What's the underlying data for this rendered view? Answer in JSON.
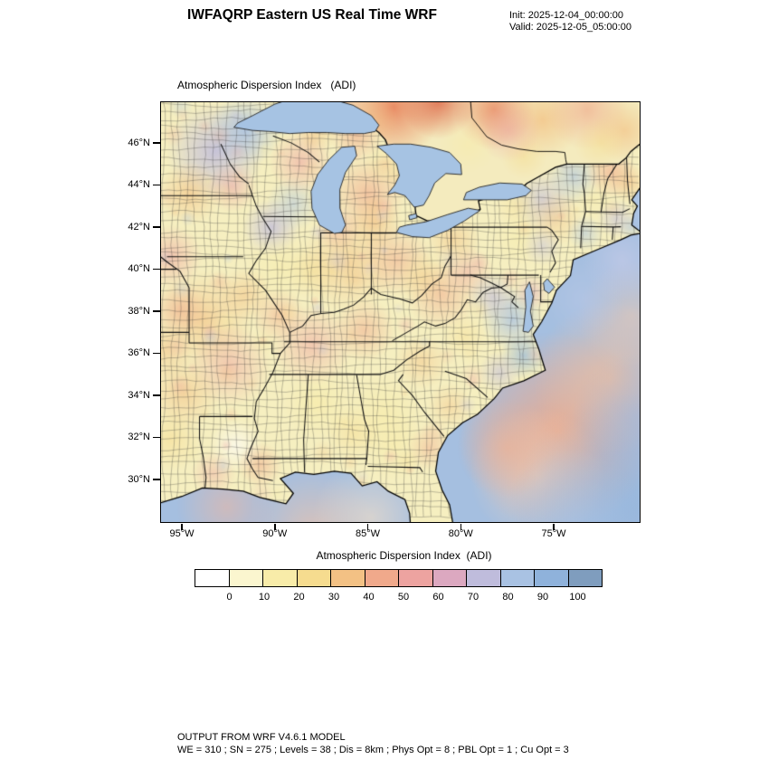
{
  "header": {
    "title": "IWFAQRP Eastern US Real Time WRF",
    "init_label": "Init: 2025-12-04_00:00:00",
    "valid_label": "Valid: 2025-12-05_05:00:00"
  },
  "map": {
    "field_label": "Atmospheric Dispersion Index   (ADI)",
    "lat_tick_labels": [
      "46°N",
      "44°N",
      "42°N",
      "40°N",
      "38°N",
      "36°N",
      "34°N",
      "32°N",
      "30°N"
    ],
    "lon_tick_labels": [
      "95°W",
      "90°W",
      "85°W",
      "80°W",
      "75°W"
    ]
  },
  "colorbar": {
    "title": "Atmospheric Dispersion Index  (ADI)",
    "tick_labels": [
      "0",
      "10",
      "20",
      "30",
      "40",
      "50",
      "60",
      "70",
      "80",
      "90",
      "100"
    ],
    "colors": [
      "#FFFFFF",
      "#FBF6CF",
      "#F8ECA9",
      "#F6DC8F",
      "#F3C184",
      "#F0A98B",
      "#EDA3A0",
      "#DCA8C0",
      "#BFBCDC",
      "#A9C2E3",
      "#8FB2DB",
      "#7F9DBE"
    ]
  },
  "footer": {
    "line1": "OUTPUT FROM WRF V4.6.1 MODEL",
    "line2": "WE = 310 ; SN = 275 ; Levels = 38 ; Dis = 8km ; Phys Opt = 8 ; PBL Opt = 1 ; Cu Opt = 3"
  },
  "chart_data": {
    "type": "heatmap",
    "title": "Atmospheric Dispersion Index (ADI)",
    "projection": "Eastern US lat/lon map with county boundaries",
    "x_ticks": [
      "95°W",
      "90°W",
      "85°W",
      "80°W",
      "75°W"
    ],
    "y_ticks": [
      "46°N",
      "44°N",
      "42°N",
      "40°N",
      "38°N",
      "36°N",
      "34°N",
      "32°N",
      "30°N"
    ],
    "colorbar_levels": [
      0,
      10,
      20,
      30,
      40,
      50,
      60,
      70,
      80,
      90,
      100
    ],
    "colorbar_colors": [
      "#FFFFFF",
      "#FBF6CF",
      "#F8ECA9",
      "#F6DC8F",
      "#F3C184",
      "#F0A98B",
      "#EDA3A0",
      "#DCA8C0",
      "#BFBCDC",
      "#A9C2E3",
      "#8FB2DB",
      "#7F9DBE"
    ],
    "legend_position": "bottom",
    "notes": "Low ADI (yellow/gold 10-40) over most land; pink/salmon 30-60 patches over Midwest, Tennessee valley and offshore southeast Atlantic; high ADI (blue 70-100) over Atlantic ocean, Great Lakes, upper Midwest and parts of the Northeast; deep orange patches over southern Canada."
  }
}
